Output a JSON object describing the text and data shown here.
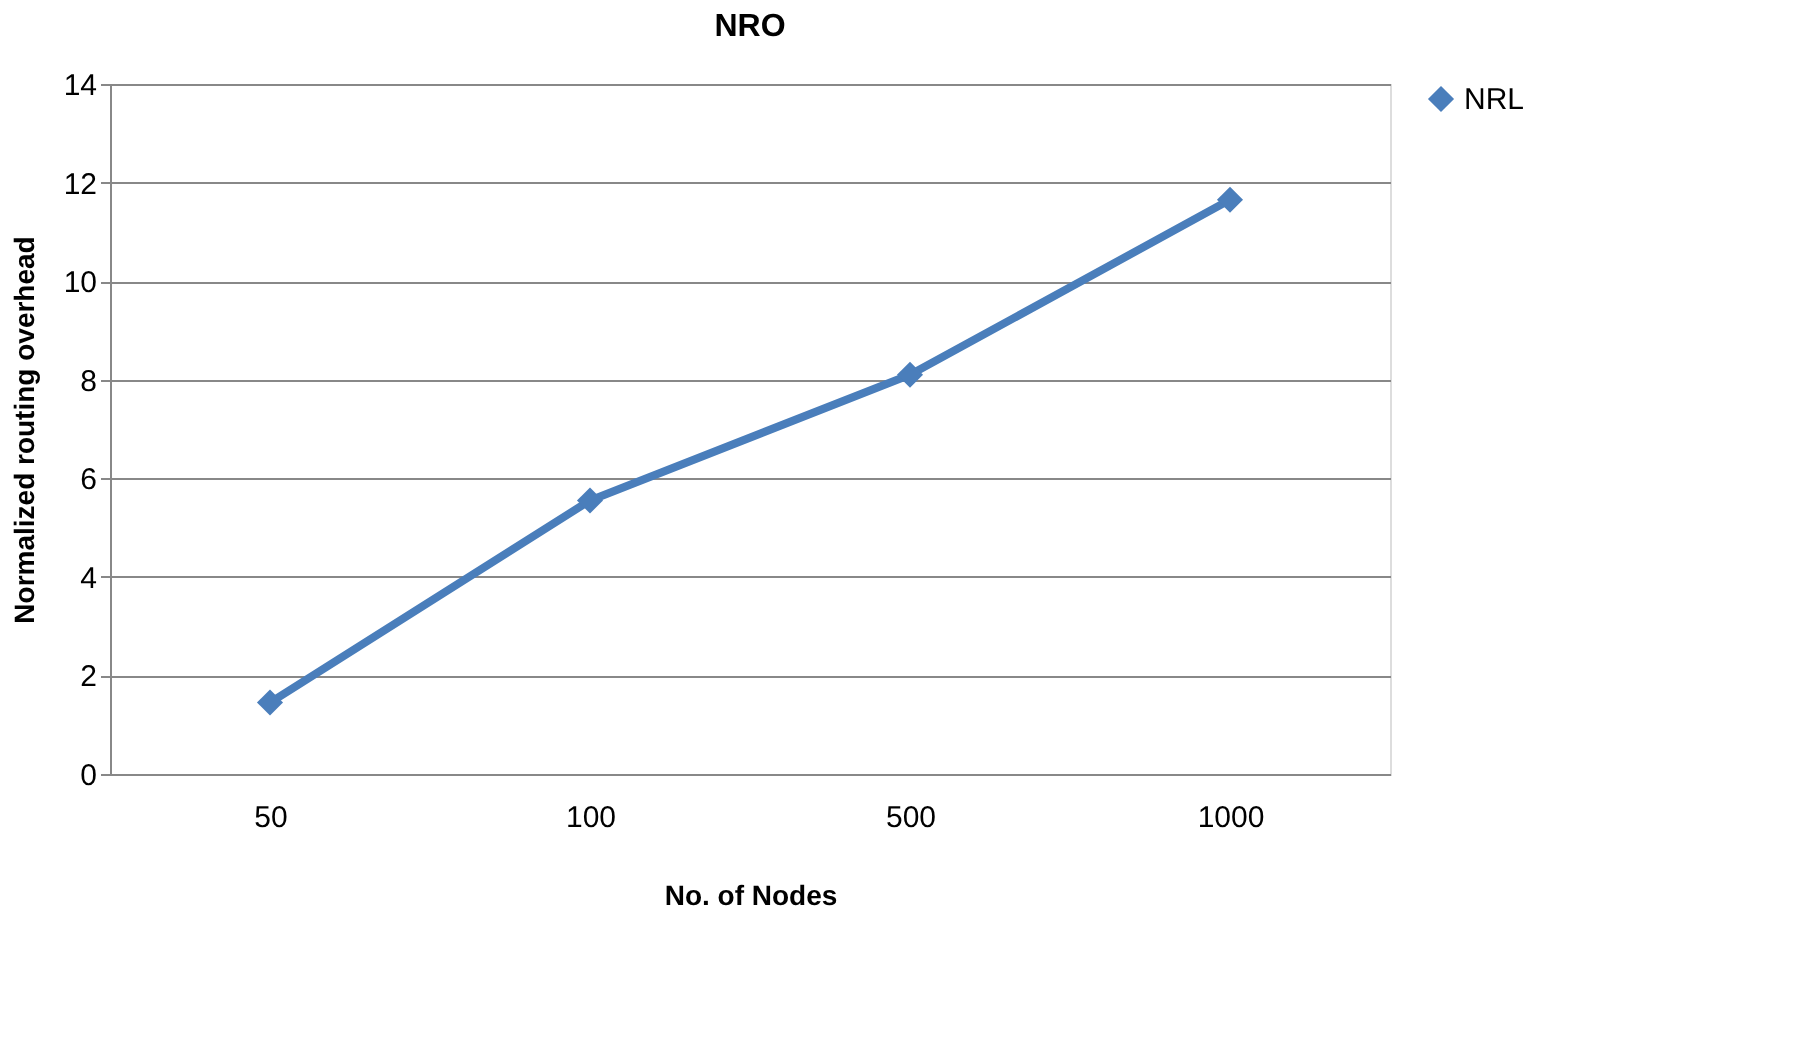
{
  "chart_data": {
    "type": "line",
    "title": "NRO",
    "xlabel": "No. of Nodes",
    "ylabel": "Normalized routing overhead",
    "categories": [
      "50",
      "100",
      "500",
      "1000"
    ],
    "series": [
      {
        "name": "NRL",
        "color": "#4a7ebb",
        "values": [
          1.45,
          5.55,
          8.1,
          11.65
        ]
      }
    ],
    "ylim": [
      0,
      14
    ],
    "yticks": [
      0,
      2,
      4,
      6,
      8,
      10,
      12,
      14
    ],
    "grid": "y",
    "legend": "right",
    "marker": "diamond",
    "line_style": "solid"
  }
}
